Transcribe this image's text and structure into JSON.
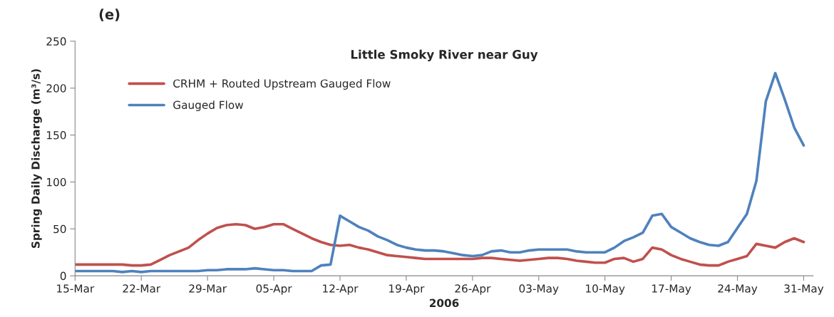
{
  "chart_data": {
    "type": "line",
    "title": "Little Smoky River near Guy",
    "xlabel": "2006",
    "ylabel": "Spring Daily Discharge (m³/s)",
    "annotations": [
      "(e)"
    ],
    "x": [
      "2006-03-15",
      "2006-03-16",
      "2006-03-17",
      "2006-03-18",
      "2006-03-19",
      "2006-03-20",
      "2006-03-21",
      "2006-03-22",
      "2006-03-23",
      "2006-03-24",
      "2006-03-25",
      "2006-03-26",
      "2006-03-27",
      "2006-03-28",
      "2006-03-29",
      "2006-03-30",
      "2006-03-31",
      "2006-04-01",
      "2006-04-02",
      "2006-04-03",
      "2006-04-04",
      "2006-04-05",
      "2006-04-06",
      "2006-04-07",
      "2006-04-08",
      "2006-04-09",
      "2006-04-10",
      "2006-04-11",
      "2006-04-12",
      "2006-04-13",
      "2006-04-14",
      "2006-04-15",
      "2006-04-16",
      "2006-04-17",
      "2006-04-18",
      "2006-04-19",
      "2006-04-20",
      "2006-04-21",
      "2006-04-22",
      "2006-04-23",
      "2006-04-24",
      "2006-04-25",
      "2006-04-26",
      "2006-04-27",
      "2006-04-28",
      "2006-04-29",
      "2006-04-30",
      "2006-05-01",
      "2006-05-02",
      "2006-05-03",
      "2006-05-04",
      "2006-05-05",
      "2006-05-06",
      "2006-05-07",
      "2006-05-08",
      "2006-05-09",
      "2006-05-10",
      "2006-05-11",
      "2006-05-12",
      "2006-05-13",
      "2006-05-14",
      "2006-05-15",
      "2006-05-16",
      "2006-05-17",
      "2006-05-18",
      "2006-05-19",
      "2006-05-20",
      "2006-05-21",
      "2006-05-22",
      "2006-05-23",
      "2006-05-24",
      "2006-05-25",
      "2006-05-26",
      "2006-05-27",
      "2006-05-28",
      "2006-05-29",
      "2006-05-30",
      "2006-05-31"
    ],
    "series": [
      {
        "name": "CRHM + Routed Upstream Gauged Flow",
        "color": "#c0504d",
        "values": [
          12,
          12,
          12,
          12,
          12,
          12,
          11,
          11,
          12,
          17,
          22,
          26,
          30,
          38,
          45,
          51,
          54,
          55,
          54,
          50,
          52,
          55,
          55,
          50,
          45,
          40,
          36,
          33,
          32,
          33,
          30,
          28,
          25,
          22,
          21,
          20,
          19,
          18,
          18,
          18,
          18,
          18,
          18,
          19,
          19,
          18,
          17,
          16,
          17,
          18,
          19,
          19,
          18,
          16,
          15,
          14,
          14,
          18,
          19,
          15,
          18,
          30,
          28,
          22,
          18,
          15,
          12,
          11,
          11,
          15,
          18,
          21,
          34,
          32,
          30,
          36,
          40,
          36
        ]
      },
      {
        "name": "Gauged Flow",
        "color": "#4f81bd",
        "values": [
          5,
          5,
          5,
          5,
          5,
          4,
          5,
          4,
          5,
          5,
          5,
          5,
          5,
          5,
          6,
          6,
          7,
          7,
          7,
          8,
          7,
          6,
          6,
          5,
          5,
          5,
          11,
          12,
          64,
          58,
          52,
          48,
          42,
          38,
          33,
          30,
          28,
          27,
          27,
          26,
          24,
          22,
          21,
          22,
          26,
          27,
          25,
          25,
          27,
          28,
          28,
          28,
          28,
          26,
          25,
          25,
          25,
          30,
          37,
          41,
          46,
          64,
          66,
          52,
          46,
          40,
          36,
          33,
          32,
          36,
          51,
          66,
          101,
          186,
          216,
          188,
          158,
          139
        ]
      }
    ],
    "xlim": [
      "2006-03-15",
      "2006-06-01"
    ],
    "xticks": [
      {
        "value": "2006-03-15",
        "label": "15-Mar"
      },
      {
        "value": "2006-03-22",
        "label": "22-Mar"
      },
      {
        "value": "2006-03-29",
        "label": "29-Mar"
      },
      {
        "value": "2006-04-05",
        "label": "05-Apr"
      },
      {
        "value": "2006-04-12",
        "label": "12-Apr"
      },
      {
        "value": "2006-04-19",
        "label": "19-Apr"
      },
      {
        "value": "2006-04-26",
        "label": "26-Apr"
      },
      {
        "value": "2006-05-03",
        "label": "03-May"
      },
      {
        "value": "2006-05-10",
        "label": "10-May"
      },
      {
        "value": "2006-05-17",
        "label": "17-May"
      },
      {
        "value": "2006-05-24",
        "label": "24-May"
      },
      {
        "value": "2006-05-31",
        "label": "31-May"
      }
    ],
    "ylim": [
      0,
      250
    ],
    "yticks": [
      0,
      50,
      100,
      150,
      200,
      250
    ],
    "grid": false,
    "legend": "top left",
    "marker": "none",
    "line_style": "solid"
  }
}
